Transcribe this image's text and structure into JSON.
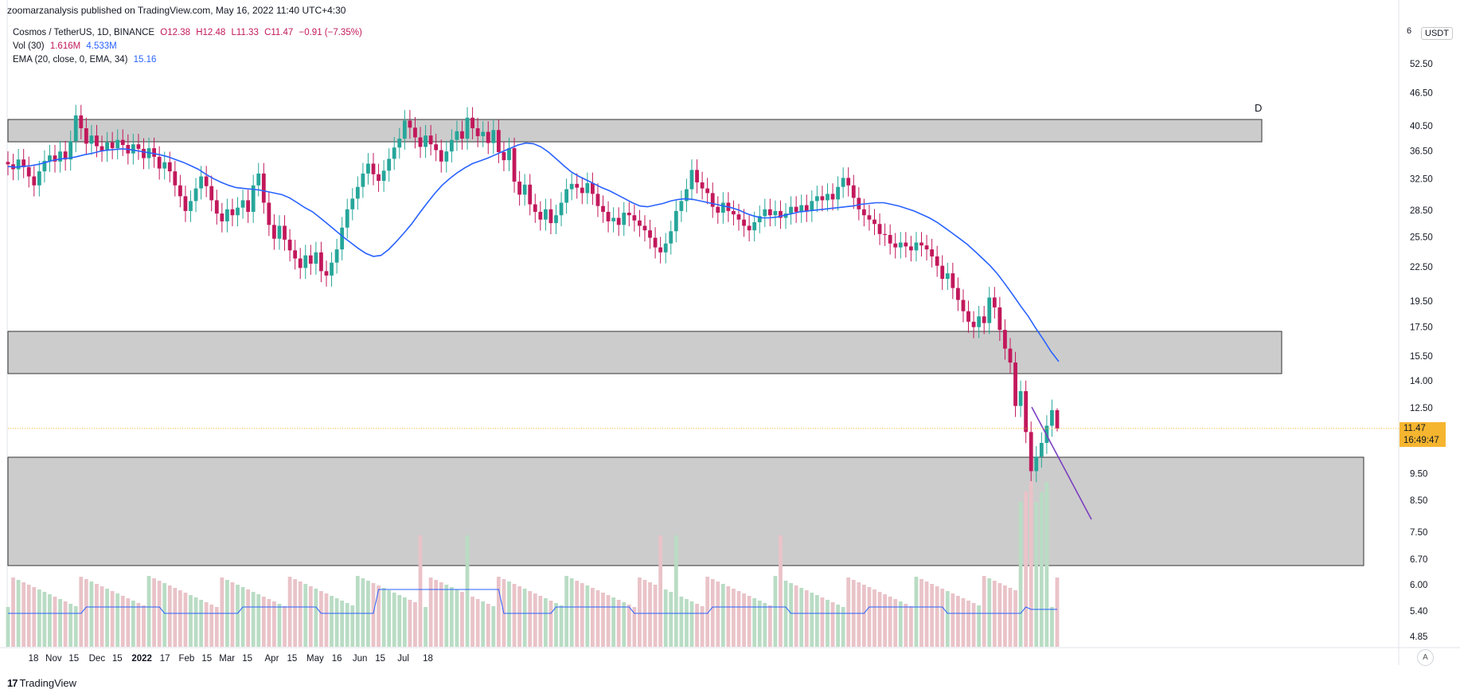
{
  "header": {
    "publisher_line": "zoomarzanalysis published on TradingView.com, May 16, 2022 11:40 UTC+4:30"
  },
  "legend": {
    "symbol": "Cosmos / TetherUS, 1D, BINANCE",
    "open": "O12.38",
    "high": "H12.48",
    "low": "L11.33",
    "close": "C11.47",
    "change": "−0.91 (−7.35%)",
    "vol_label": "Vol (30)",
    "vol_value": "1.616M",
    "vol_ma": "4.533M",
    "ema_label": "EMA (20, close, 0, EMA, 34)",
    "ema_value": "15.16"
  },
  "price_axis": {
    "unit": "USDT",
    "top_partial": "6",
    "current_price": "11.47",
    "countdown": "16:49:47"
  },
  "annotation": {
    "zone_label": "D"
  },
  "footer": {
    "brand": "TradingView",
    "auto_label": "A"
  },
  "colors": {
    "up": "#26a69a",
    "down": "#c2185b",
    "ema": "#2962ff",
    "zone_fill": "#cccccc",
    "trendline": "#7b3fbf",
    "price_tag": "#f5b52f",
    "vol_up": "#b9dcc4",
    "vol_down": "#e9c3c8"
  },
  "chart_data": {
    "type": "candlestick",
    "title": "Cosmos / TetherUS, 1D, BINANCE",
    "y_scale": "log",
    "y_ticks": [
      "52.50",
      "46.50",
      "40.50",
      "36.50",
      "32.50",
      "28.50",
      "25.50",
      "22.50",
      "19.50",
      "17.50",
      "15.50",
      "14.00",
      "12.50",
      "9.50",
      "8.50",
      "7.50",
      "6.70",
      "6.00",
      "5.40",
      "4.85"
    ],
    "x_ticks": [
      "18",
      "Nov",
      "15",
      "Dec",
      "15",
      "2022",
      "17",
      "Feb",
      "15",
      "Mar",
      "15",
      "Apr",
      "15",
      "May",
      "16",
      "Jun",
      "15",
      "Jul",
      "18"
    ],
    "x_tick_dates": [
      "2021-10-18",
      "2021-11-01",
      "2021-11-15",
      "2021-12-01",
      "2021-12-15",
      "2022-01-01",
      "2022-01-17",
      "2022-02-01",
      "2022-02-15",
      "2022-03-01",
      "2022-03-15",
      "2022-04-01",
      "2022-04-15",
      "2022-05-01",
      "2022-05-16",
      "2022-06-01",
      "2022-06-15",
      "2022-07-01",
      "2022-07-18"
    ],
    "last": {
      "open": 12.38,
      "high": 12.48,
      "low": 11.33,
      "close": 11.47
    },
    "closes": [
      34.5,
      33.8,
      35.2,
      34.1,
      32.8,
      31.6,
      33.5,
      35.0,
      35.8,
      34.9,
      36.4,
      35.2,
      38.0,
      42.3,
      40.1,
      37.6,
      38.9,
      37.2,
      36.5,
      37.8,
      36.9,
      38.2,
      37.4,
      36.1,
      37.5,
      36.8,
      35.4,
      36.9,
      35.6,
      33.9,
      34.8,
      33.5,
      31.6,
      30.2,
      28.4,
      29.6,
      31.2,
      32.8,
      31.5,
      29.7,
      28.1,
      27.2,
      28.6,
      27.9,
      28.8,
      29.7,
      28.3,
      31.6,
      33.2,
      29.4,
      26.8,
      25.3,
      26.7,
      25.2,
      24.1,
      23.3,
      22.4,
      23.6,
      22.8,
      23.9,
      22.1,
      21.7,
      22.9,
      24.2,
      26.5,
      28.6,
      29.9,
      31.4,
      33.2,
      34.6,
      33.1,
      32.2,
      33.6,
      35.3,
      37.0,
      38.4,
      41.4,
      40.2,
      38.6,
      37.1,
      38.9,
      37.5,
      36.6,
      34.9,
      36.4,
      38.2,
      39.6,
      38.4,
      41.9,
      40.1,
      38.8,
      39.5,
      37.7,
      39.8,
      36.3,
      35.1,
      36.9,
      32.1,
      30.4,
      31.7,
      29.2,
      28.3,
      27.4,
      28.6,
      27.0,
      27.9,
      29.4,
      31.1,
      31.8,
      31.3,
      30.6,
      31.9,
      30.5,
      29.0,
      28.3,
      27.2,
      27.6,
      26.8,
      28.2,
      27.9,
      27.3,
      26.7,
      26.2,
      25.4,
      24.4,
      23.9,
      24.8,
      26.1,
      28.4,
      29.6,
      31.1,
      33.7,
      32.0,
      31.2,
      30.6,
      28.9,
      28.2,
      29.4,
      28.4,
      28.0,
      27.4,
      26.7,
      26.2,
      27.1,
      27.8,
      28.6,
      27.9,
      28.4,
      27.6,
      28.1,
      28.9,
      28.3,
      29.1,
      28.4,
      29.6,
      30.2,
      29.7,
      30.5,
      29.8,
      31.4,
      32.6,
      31.6,
      30.0,
      28.6,
      27.9,
      27.4,
      26.9,
      25.8,
      25.7,
      24.8,
      24.4,
      24.9,
      24.5,
      24.1,
      24.9,
      24.6,
      24.2,
      23.5,
      22.6,
      21.4,
      21.9,
      20.6,
      19.6,
      18.7,
      17.9,
      17.5,
      18.3,
      17.8,
      19.8,
      19.0,
      17.3,
      16.0,
      15.1,
      12.6,
      13.4,
      11.3,
      9.6,
      10.2,
      10.8,
      11.6,
      12.38,
      11.47
    ],
    "ema20": [
      34.2,
      34.1,
      34.2,
      34.3,
      34.5,
      34.8,
      35.1,
      35.3,
      35.4,
      35.6,
      35.9,
      36.1,
      36.4,
      36.6,
      36.7,
      36.8,
      36.7,
      36.5,
      36.3,
      36.1,
      35.9,
      35.6,
      35.2,
      34.8,
      34.3,
      33.8,
      33.1,
      32.5,
      32.0,
      31.6,
      31.3,
      31.2,
      31.1,
      31.0,
      30.8,
      30.6,
      30.4,
      30.0,
      29.4,
      28.8,
      28.3,
      27.6,
      26.9,
      26.2,
      25.5,
      24.9,
      24.3,
      23.8,
      23.5,
      23.6,
      24.2,
      25.0,
      25.9,
      26.9,
      28.1,
      29.3,
      30.5,
      31.6,
      32.5,
      33.3,
      34.0,
      34.6,
      35.0,
      35.4,
      35.9,
      36.4,
      36.9,
      37.4,
      37.7,
      37.6,
      37.1,
      36.3,
      35.3,
      34.3,
      33.4,
      32.8,
      32.3,
      31.8,
      31.3,
      30.9,
      30.4,
      29.9,
      29.4,
      29.0,
      28.9,
      29.1,
      29.3,
      29.6,
      29.8,
      29.9,
      29.8,
      29.6,
      29.4,
      29.2,
      29.0,
      28.8,
      28.5,
      28.1,
      27.8,
      27.6,
      27.6,
      27.7,
      27.9,
      28.1,
      28.3,
      28.4,
      28.5,
      28.6,
      28.7,
      28.8,
      28.9,
      29.0,
      29.2,
      29.3,
      29.4,
      29.4,
      29.2,
      29.0,
      28.7,
      28.4,
      28.0,
      27.6,
      27.1,
      26.5,
      25.9,
      25.3,
      24.7,
      24.0,
      23.3,
      22.6,
      21.8,
      20.9,
      20.0,
      19.1,
      18.3,
      17.4,
      16.6,
      15.8,
      15.16
    ]
  }
}
